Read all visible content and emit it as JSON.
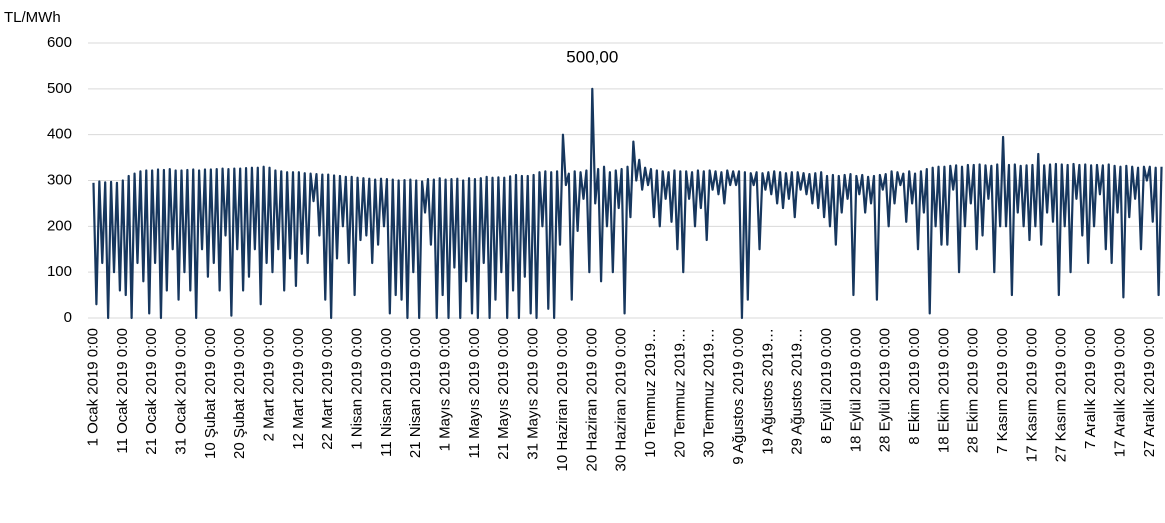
{
  "chart_data": {
    "type": "line",
    "y_axis_label": "TL/MWh",
    "annotations": [
      {
        "text": "500,00",
        "value": 500
      }
    ],
    "ylim": [
      0,
      600
    ],
    "yticks": [
      0,
      100,
      200,
      300,
      400,
      500,
      600
    ],
    "grid": true,
    "categories": [
      "1 Ocak 2019 0:00",
      null,
      null,
      null,
      null,
      null,
      null,
      null,
      null,
      null,
      "11 Ocak 2019 0:00",
      null,
      null,
      null,
      null,
      null,
      null,
      null,
      null,
      null,
      "21 Ocak 2019 0:00",
      null,
      null,
      null,
      null,
      null,
      null,
      null,
      null,
      null,
      "31 Ocak 2019 0:00",
      null,
      null,
      null,
      null,
      null,
      null,
      null,
      null,
      null,
      "10 Şubat 2019 0:00",
      null,
      null,
      null,
      null,
      null,
      null,
      null,
      null,
      null,
      "20 Şubat 2019 0:00",
      null,
      null,
      null,
      null,
      null,
      null,
      null,
      null,
      null,
      "2 Mart 2019 0:00",
      null,
      null,
      null,
      null,
      null,
      null,
      null,
      null,
      null,
      "12 Mart 2019 0:00",
      null,
      null,
      null,
      null,
      null,
      null,
      null,
      null,
      null,
      "22 Mart 2019 0:00",
      null,
      null,
      null,
      null,
      null,
      null,
      null,
      null,
      null,
      "1 Nisan 2019 0:00",
      null,
      null,
      null,
      null,
      null,
      null,
      null,
      null,
      null,
      "11 Nisan 2019 0:00",
      null,
      null,
      null,
      null,
      null,
      null,
      null,
      null,
      null,
      "21 Nisan 2019 0:00",
      null,
      null,
      null,
      null,
      null,
      null,
      null,
      null,
      null,
      "1 Mayıs 2019 0:00",
      null,
      null,
      null,
      null,
      null,
      null,
      null,
      null,
      null,
      "11 Mayıs 2019 0:00",
      null,
      null,
      null,
      null,
      null,
      null,
      null,
      null,
      null,
      "21 Mayıs 2019 0:00",
      null,
      null,
      null,
      null,
      null,
      null,
      null,
      null,
      null,
      "31 Mayıs 2019 0:00",
      null,
      null,
      null,
      null,
      null,
      null,
      null,
      null,
      null,
      "10 Haziran 2019 0:00",
      null,
      null,
      null,
      null,
      null,
      null,
      null,
      null,
      null,
      "20 Haziran 2019 0:00",
      null,
      null,
      null,
      null,
      null,
      null,
      null,
      null,
      null,
      "30 Haziran 2019 0:00",
      null,
      null,
      null,
      null,
      null,
      null,
      null,
      null,
      null,
      "10 Temmuz 2019…",
      null,
      null,
      null,
      null,
      null,
      null,
      null,
      null,
      null,
      "20 Temmuz 2019…",
      null,
      null,
      null,
      null,
      null,
      null,
      null,
      null,
      null,
      "30 Temmuz 2019…",
      null,
      null,
      null,
      null,
      null,
      null,
      null,
      null,
      null,
      "9 Ağustos 2019 0:00",
      null,
      null,
      null,
      null,
      null,
      null,
      null,
      null,
      null,
      "19 Ağustos 2019…",
      null,
      null,
      null,
      null,
      null,
      null,
      null,
      null,
      null,
      "29 Ağustos 2019…",
      null,
      null,
      null,
      null,
      null,
      null,
      null,
      null,
      null,
      "8 Eylül 2019 0:00",
      null,
      null,
      null,
      null,
      null,
      null,
      null,
      null,
      null,
      "18 Eylül 2019 0:00",
      null,
      null,
      null,
      null,
      null,
      null,
      null,
      null,
      null,
      "28 Eylül 2019 0:00",
      null,
      null,
      null,
      null,
      null,
      null,
      null,
      null,
      null,
      "8 Ekim 2019 0:00",
      null,
      null,
      null,
      null,
      null,
      null,
      null,
      null,
      null,
      "18 Ekim 2019 0:00",
      null,
      null,
      null,
      null,
      null,
      null,
      null,
      null,
      null,
      "28 Ekim 2019 0:00",
      null,
      null,
      null,
      null,
      null,
      null,
      null,
      null,
      null,
      "7 Kasım 2019 0:00",
      null,
      null,
      null,
      null,
      null,
      null,
      null,
      null,
      null,
      "17 Kasım 2019 0:00",
      null,
      null,
      null,
      null,
      null,
      null,
      null,
      null,
      null,
      "27 Kasım 2019 0:00",
      null,
      null,
      null,
      null,
      null,
      null,
      null,
      null,
      null,
      "7 Aralık 2019 0:00",
      null,
      null,
      null,
      null,
      null,
      null,
      null,
      null,
      null,
      "17 Aralık 2019 0:00",
      null,
      null,
      null,
      null,
      null,
      null,
      null,
      null,
      null,
      "27 Aralık 2019 0:00",
      null,
      null,
      null,
      null
    ],
    "color": "#17375e",
    "values": [
      295,
      30,
      298,
      120,
      296,
      0,
      297,
      100,
      295,
      60,
      300,
      50,
      310,
      0,
      315,
      120,
      320,
      80,
      322,
      10,
      322,
      120,
      324,
      0,
      323,
      60,
      325,
      150,
      322,
      40,
      322,
      100,
      323,
      60,
      324,
      0,
      322,
      150,
      324,
      90,
      324,
      120,
      325,
      60,
      326,
      180,
      325,
      5,
      326,
      150,
      326,
      60,
      327,
      90,
      328,
      150,
      328,
      30,
      330,
      120,
      328,
      100,
      322,
      150,
      320,
      60,
      318,
      130,
      318,
      70,
      318,
      140,
      316,
      120,
      315,
      255,
      314,
      180,
      313,
      40,
      313,
      0,
      311,
      130,
      310,
      200,
      308,
      120,
      308,
      50,
      306,
      170,
      305,
      180,
      304,
      120,
      302,
      160,
      304,
      200,
      303,
      10,
      302,
      50,
      300,
      40,
      301,
      0,
      302,
      100,
      300,
      0,
      298,
      230,
      303,
      160,
      302,
      0,
      305,
      50,
      302,
      0,
      303,
      110,
      304,
      0,
      300,
      80,
      305,
      10,
      303,
      0,
      305,
      120,
      308,
      0,
      306,
      40,
      307,
      100,
      306,
      0,
      309,
      60,
      312,
      0,
      310,
      90,
      310,
      10,
      312,
      0,
      318,
      200,
      320,
      20,
      318,
      0,
      320,
      160,
      400,
      290,
      315,
      40,
      320,
      190,
      318,
      260,
      322,
      100,
      500,
      250,
      325,
      80,
      330,
      200,
      318,
      100,
      322,
      240,
      325,
      10,
      330,
      220,
      385,
      300,
      345,
      280,
      328,
      290,
      325,
      220,
      322,
      200,
      320,
      260,
      318,
      210,
      322,
      150,
      320,
      100,
      320,
      260,
      318,
      200,
      322,
      240,
      320,
      170,
      322,
      280,
      320,
      270,
      318,
      250,
      322,
      290,
      320,
      290,
      320,
      0,
      318,
      40,
      316,
      290,
      318,
      150,
      316,
      280,
      318,
      270,
      320,
      250,
      318,
      240,
      316,
      260,
      318,
      220,
      318,
      280,
      316,
      270,
      314,
      250,
      316,
      240,
      318,
      220,
      310,
      200,
      312,
      160,
      310,
      230,
      312,
      260,
      314,
      50,
      310,
      270,
      312,
      230,
      308,
      250,
      310,
      40,
      312,
      280,
      314,
      200,
      320,
      250,
      318,
      290,
      315,
      210,
      320,
      250,
      315,
      150,
      320,
      230,
      325,
      10,
      328,
      200,
      330,
      160,
      330,
      160,
      332,
      280,
      333,
      100,
      330,
      200,
      334,
      250,
      334,
      150,
      335,
      180,
      333,
      260,
      332,
      100,
      335,
      200,
      395,
      200,
      334,
      50,
      335,
      230,
      332,
      200,
      333,
      170,
      334,
      200,
      358,
      160,
      333,
      230,
      335,
      210,
      336,
      50,
      335,
      200,
      334,
      100,
      336,
      260,
      334,
      180,
      335,
      120,
      333,
      200,
      334,
      270,
      333,
      150,
      335,
      120,
      332,
      230,
      330,
      45,
      332,
      220,
      330,
      260,
      328,
      150,
      330,
      300,
      330,
      210,
      328,
      50,
      330
    ]
  }
}
